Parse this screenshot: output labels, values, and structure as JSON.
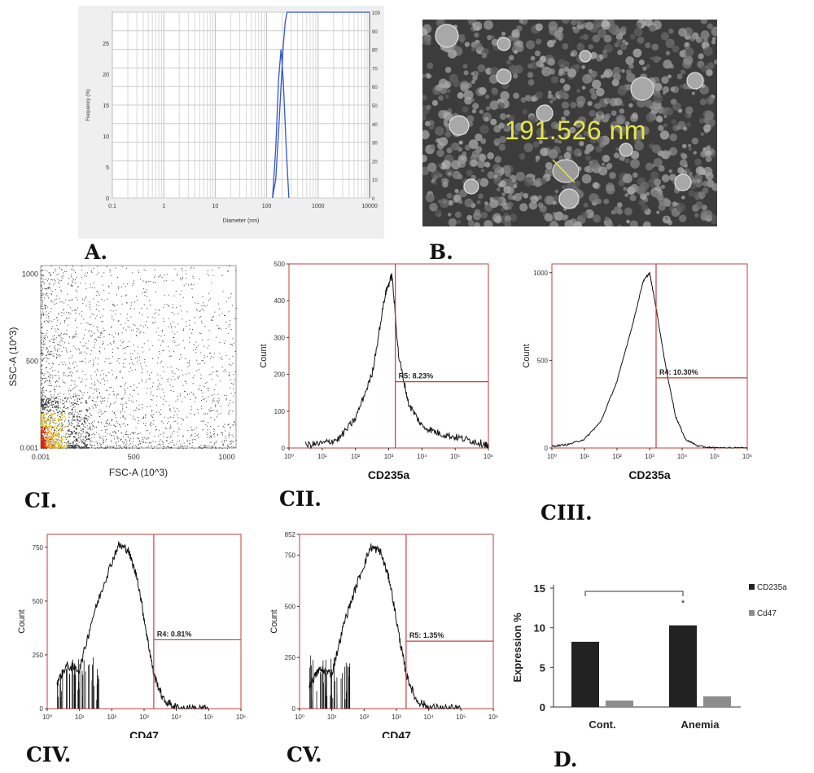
{
  "panel_labels": {
    "a": "A.",
    "b": "B.",
    "c1": "CI.",
    "c2": "CII.",
    "c3": "CIII.",
    "c4": "CIV.",
    "c5": "CV.",
    "d": "D."
  },
  "sem": {
    "measurement": "191.526 nm"
  },
  "chart_data": [
    {
      "id": "A",
      "type": "line",
      "xlabel": "Diameter (nm)",
      "ylabel": "Frequency (%)",
      "x_scale": "log",
      "x_ticks": [
        "0.1",
        "1",
        "10",
        "100",
        "1000",
        "10000"
      ],
      "y_ticks_left": [
        "0",
        "5",
        "10",
        "15",
        "20",
        "25"
      ],
      "y_ticks_right": [
        "0",
        "10",
        "20",
        "30",
        "40",
        "50",
        "60",
        "70",
        "80",
        "90",
        "100"
      ],
      "xlim": [
        0.1,
        10000
      ],
      "ylim": [
        0,
        30
      ],
      "grid": true,
      "series": [
        {
          "x": [
            130,
            150,
            170,
            190,
            210,
            240,
            270
          ],
          "y": [
            0,
            8,
            19,
            24,
            19,
            8,
            0
          ]
        },
        {
          "x": [
            130,
            150,
            170,
            190,
            210,
            230,
            250,
            300,
            10000
          ],
          "y": [
            0,
            10,
            35,
            60,
            82,
            95,
            100,
            100,
            100
          ]
        }
      ]
    },
    {
      "id": "CI",
      "type": "scatter",
      "xlabel": "FSC-A (10^3)",
      "ylabel": "SSC-A (10^3)",
      "x_ticks": [
        "0.001",
        "500",
        "1000"
      ],
      "y_ticks": [
        "0.001",
        "500",
        "1000"
      ],
      "xlim": [
        0,
        1050
      ],
      "ylim": [
        0,
        1050
      ]
    },
    {
      "id": "CII",
      "type": "area",
      "xlabel": "CD235a",
      "ylabel": "Count",
      "x_scale": "log",
      "x_ticks": [
        "10⁰",
        "10¹",
        "10²",
        "10³",
        "10⁴",
        "10⁵",
        "10⁶"
      ],
      "y_ticks": [
        "0",
        "100",
        "200",
        "300",
        "400",
        "500"
      ],
      "ylim": [
        0,
        500
      ],
      "gate": {
        "name": "R5",
        "label": "R5: 8.23%",
        "value_percent": 8.23,
        "start_log": 3.2,
        "level": 180
      },
      "series": [
        {
          "x": [
            0.5,
            1.0,
            1.5,
            2.0,
            2.5,
            2.9,
            3.1,
            3.3,
            3.6,
            4.0,
            4.5,
            5.0,
            5.5,
            5.9,
            6.0
          ],
          "y": [
            8,
            12,
            25,
            80,
            200,
            420,
            470,
            250,
            120,
            60,
            40,
            30,
            20,
            10,
            0
          ]
        }
      ]
    },
    {
      "id": "CIII",
      "type": "area",
      "xlabel": "CD235a",
      "ylabel": "Count",
      "x_scale": "log",
      "x_ticks": [
        "10⁰",
        "10¹",
        "10²",
        "10³",
        "10⁴",
        "10⁵",
        "10⁶"
      ],
      "y_ticks": [
        "0",
        "500",
        "1000"
      ],
      "ylim": [
        0,
        1050
      ],
      "gate": {
        "name": "R4",
        "label": "R4: 10.30%",
        "value_percent": 10.3,
        "start_log": 3.2,
        "level": 400
      },
      "series": [
        {
          "x": [
            0.0,
            0.5,
            1.0,
            1.5,
            2.0,
            2.5,
            2.8,
            3.0,
            3.2,
            3.5,
            3.8,
            4.1,
            4.5,
            5.0,
            6.0
          ],
          "y": [
            10,
            20,
            50,
            150,
            380,
            720,
            950,
            1000,
            800,
            460,
            180,
            50,
            10,
            0,
            0
          ]
        }
      ]
    },
    {
      "id": "CIV",
      "type": "area",
      "xlabel": "CD47",
      "ylabel": "Count",
      "x_scale": "log",
      "x_ticks": [
        "10⁰",
        "10¹",
        "10²",
        "10³",
        "10⁴",
        "10⁵",
        "10⁶"
      ],
      "y_ticks": [
        "0",
        "250",
        "500",
        "750"
      ],
      "ylim": [
        0,
        810
      ],
      "gate": {
        "name": "R4",
        "label": "R4: 0.81%",
        "value_percent": 0.81,
        "start_log": 3.3,
        "level": 320
      },
      "series": [
        {
          "x": [
            0.3,
            0.6,
            1.0,
            1.4,
            1.8,
            2.2,
            2.5,
            2.8,
            3.1,
            3.3,
            3.6,
            4.0,
            4.5,
            5.0
          ],
          "y": [
            120,
            200,
            180,
            420,
            600,
            760,
            740,
            600,
            330,
            160,
            40,
            5,
            0,
            0
          ]
        }
      ]
    },
    {
      "id": "CV",
      "type": "area",
      "xlabel": "CD47",
      "ylabel": "Count",
      "x_scale": "log",
      "x_ticks": [
        "10⁰",
        "10¹",
        "10²",
        "10³",
        "10⁴",
        "10⁵",
        "10⁶"
      ],
      "y_ticks": [
        "0",
        "250",
        "500",
        "750",
        "852"
      ],
      "ylim": [
        0,
        852
      ],
      "gate": {
        "name": "R5",
        "label": "R5: 1.35%",
        "value_percent": 1.35,
        "start_log": 3.3,
        "level": 330
      },
      "series": [
        {
          "x": [
            0.3,
            0.6,
            1.0,
            1.4,
            1.8,
            2.2,
            2.5,
            2.8,
            3.1,
            3.3,
            3.6,
            4.0,
            4.5,
            5.0
          ],
          "y": [
            110,
            190,
            170,
            430,
            620,
            790,
            770,
            620,
            340,
            170,
            45,
            5,
            0,
            0
          ]
        }
      ]
    },
    {
      "id": "D",
      "type": "bar",
      "ylabel": "Expression %",
      "categories": [
        "Cont.",
        "Anemia"
      ],
      "y_ticks": [
        "0",
        "5",
        "10",
        "15"
      ],
      "ylim": [
        0,
        15
      ],
      "series": [
        {
          "name": "CD235a",
          "values": [
            8.23,
            10.3
          ],
          "color": "#222222"
        },
        {
          "name": "Cd47",
          "values": [
            0.81,
            1.35
          ],
          "color": "#8c8c8c"
        }
      ],
      "significance_marker": "*"
    }
  ]
}
